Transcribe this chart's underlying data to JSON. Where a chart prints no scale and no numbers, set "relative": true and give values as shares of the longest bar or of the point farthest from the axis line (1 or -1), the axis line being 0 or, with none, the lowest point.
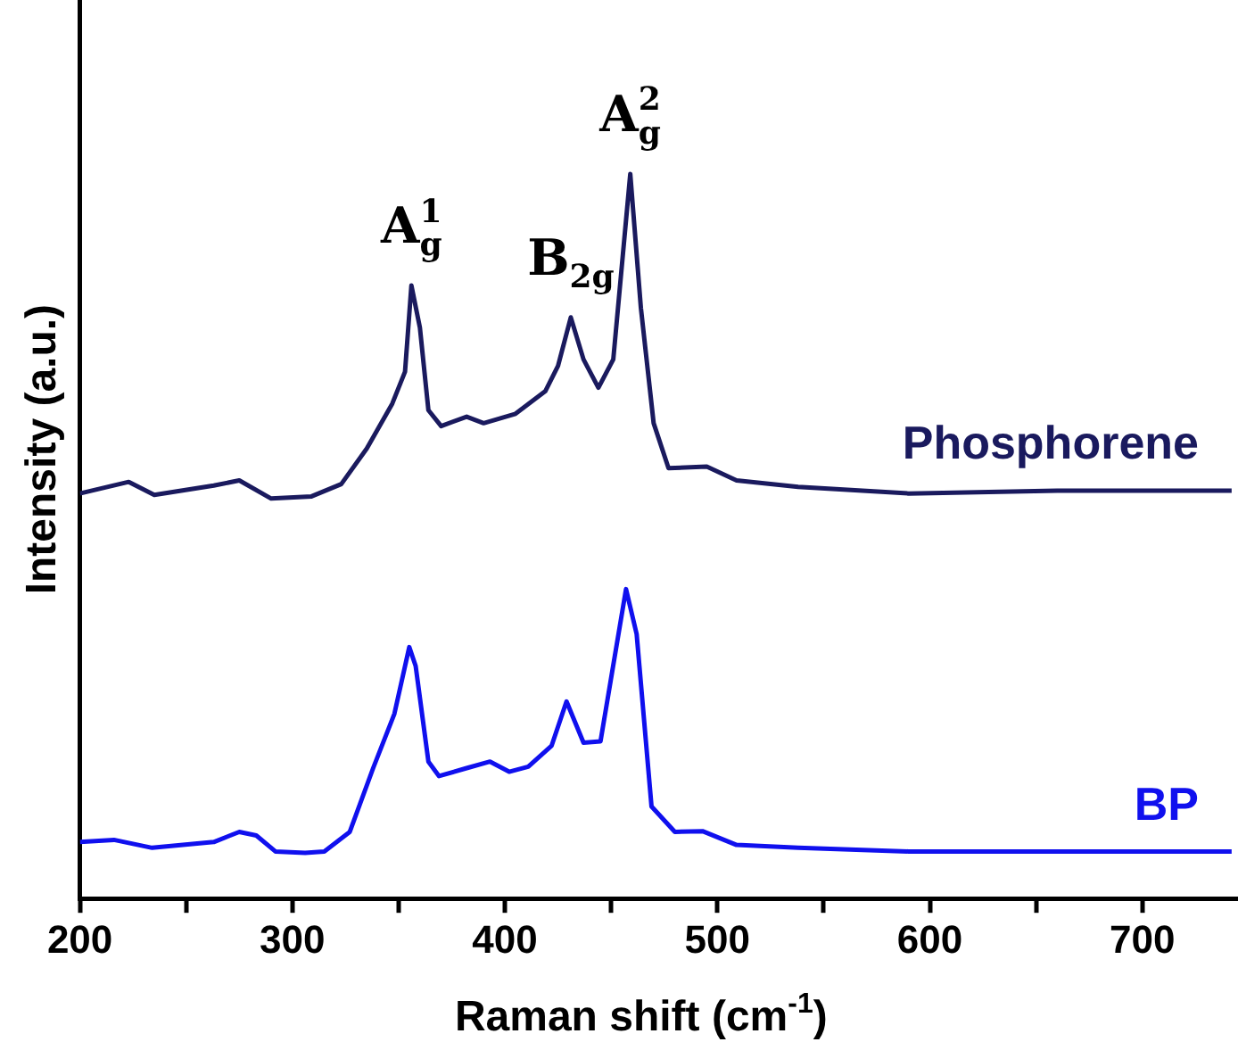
{
  "chart_data": {
    "type": "line",
    "relative": true,
    "xlabel": "Raman shift (cm$^{-1}$)",
    "ylabel": "Intensity (a.u.)",
    "xlim": [
      200,
      745
    ],
    "xticks": [
      200,
      {
        "value": 250,
        "label": null
      },
      300,
      {
        "value": 350,
        "label": null
      },
      400,
      {
        "value": 450,
        "label": null
      },
      500,
      {
        "value": 550,
        "label": null
      },
      600,
      {
        "value": 650,
        "label": null
      },
      700
    ],
    "grid": false,
    "legend": false,
    "marker": "none",
    "line_style": "solid",
    "series": [
      {
        "name": "Phosphorene",
        "color": "#1a1a5e",
        "x": [
          200,
          223,
          235,
          263,
          275,
          290,
          309,
          323,
          335,
          347,
          353,
          356,
          360,
          364,
          370,
          382,
          390,
          405,
          419,
          425,
          431,
          437,
          444,
          451,
          459,
          464,
          470,
          477,
          495,
          509,
          538,
          590,
          660,
          742
        ],
        "values": [
          0.559,
          0.575,
          0.557,
          0.57,
          0.577,
          0.552,
          0.555,
          0.572,
          0.621,
          0.683,
          0.727,
          0.846,
          0.788,
          0.674,
          0.652,
          0.665,
          0.656,
          0.669,
          0.7,
          0.735,
          0.802,
          0.744,
          0.705,
          0.744,
          1.0,
          0.815,
          0.656,
          0.594,
          0.596,
          0.577,
          0.568,
          0.559,
          0.563,
          0.563
        ]
      },
      {
        "name": "BP",
        "color": "#1010ee",
        "x": [
          200,
          216,
          234,
          263,
          275,
          283,
          292,
          306,
          315,
          327,
          338,
          348,
          355,
          358,
          364,
          369,
          382,
          393,
          402,
          411,
          422,
          429,
          437,
          445,
          457,
          462,
          469,
          480,
          493,
          509,
          538,
          590,
          660,
          742
        ],
        "values": [
          0.078,
          0.081,
          0.07,
          0.078,
          0.092,
          0.087,
          0.065,
          0.063,
          0.065,
          0.092,
          0.18,
          0.255,
          0.347,
          0.321,
          0.189,
          0.169,
          0.18,
          0.189,
          0.175,
          0.182,
          0.211,
          0.272,
          0.215,
          0.217,
          0.427,
          0.365,
          0.127,
          0.092,
          0.093,
          0.074,
          0.07,
          0.065,
          0.065,
          0.065
        ]
      }
    ],
    "annotations": [
      {
        "text": "A$_{g}$$^{1}$",
        "x": 356,
        "y": 0.846
      },
      {
        "text": "B$_{2g}$",
        "x": 431,
        "y": 0.802
      },
      {
        "text": "A$_{g}$$^{2}$",
        "x": 459,
        "y": 1.0
      }
    ]
  }
}
